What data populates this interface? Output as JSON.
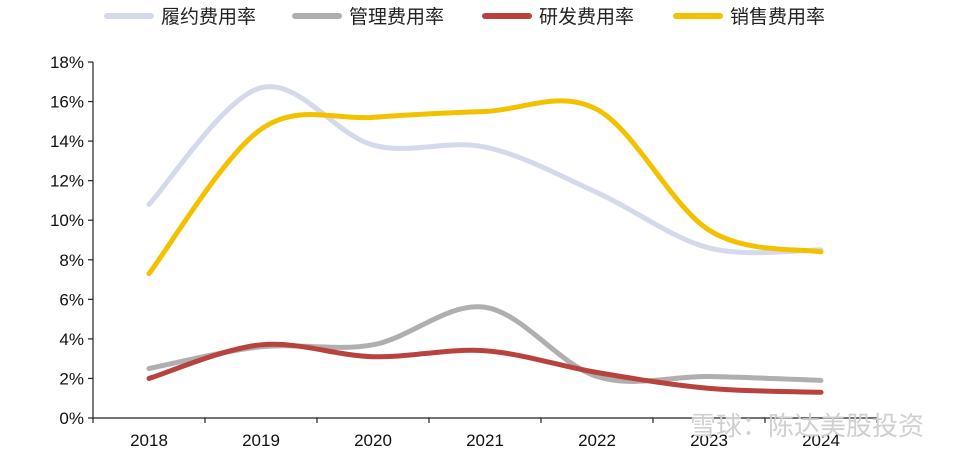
{
  "chart_data": {
    "type": "line",
    "categories": [
      "2018",
      "2019",
      "2020",
      "2021",
      "2022",
      "2023",
      "2024"
    ],
    "series": [
      {
        "name": "履约费用率",
        "color": "#d4d9ec",
        "values": [
          10.8,
          16.7,
          13.8,
          13.7,
          11.4,
          8.6,
          8.5
        ]
      },
      {
        "name": "管理费用率",
        "color": "#b0aeae",
        "values": [
          2.5,
          3.6,
          3.7,
          5.6,
          2.1,
          2.1,
          1.9
        ]
      },
      {
        "name": "研发费用率",
        "color": "#b84240",
        "values": [
          2.0,
          3.7,
          3.1,
          3.4,
          2.3,
          1.5,
          1.3
        ]
      },
      {
        "name": "销售费用率",
        "color": "#f2c200",
        "values": [
          7.3,
          14.6,
          15.2,
          15.5,
          15.6,
          9.5,
          8.4
        ]
      }
    ],
    "y_ticks": [
      "0%",
      "2%",
      "4%",
      "6%",
      "8%",
      "10%",
      "12%",
      "14%",
      "16%",
      "18%"
    ],
    "ylim": [
      0,
      18
    ],
    "grid": false,
    "legend_position": "top",
    "title": "",
    "xlabel": "",
    "ylabel": ""
  },
  "watermark": {
    "text": "雪球：陈达美股投资"
  }
}
